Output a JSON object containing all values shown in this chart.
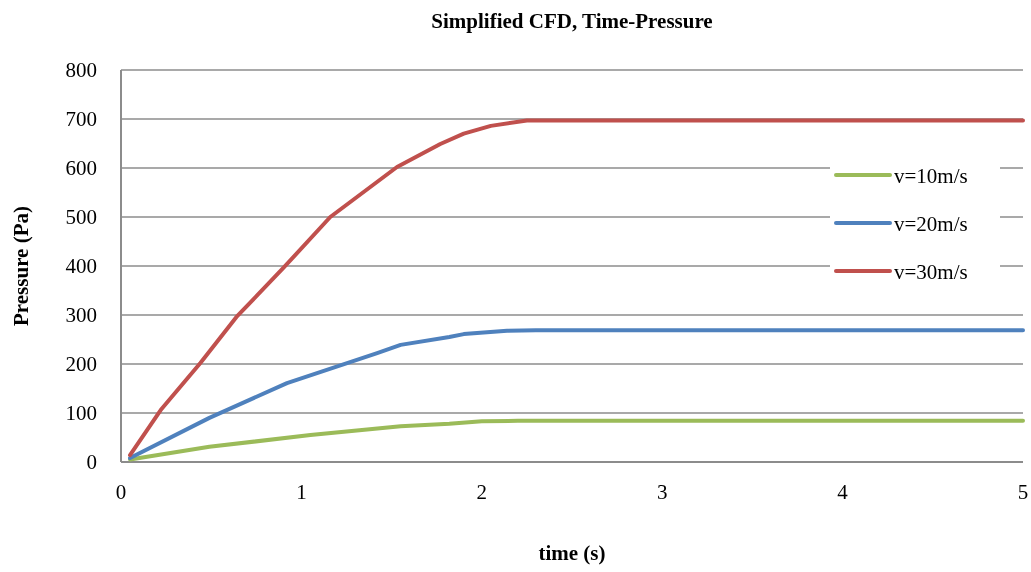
{
  "chart_data": {
    "type": "line",
    "title": "Simplified CFD,  Time-Pressure",
    "xlabel": "time (s)",
    "ylabel": "Pressure (Pa)",
    "xlim": [
      0,
      5
    ],
    "xticks": [
      0,
      1,
      2,
      3,
      4,
      5
    ],
    "ylim": [
      0,
      800
    ],
    "yticks": [
      0,
      100,
      200,
      300,
      400,
      500,
      600,
      700,
      800
    ],
    "grid": "y",
    "legend": "right",
    "marker": "none",
    "line_style": "solid",
    "series": [
      {
        "name": "v=10m/s",
        "color": "#9bbb59",
        "x": [
          0.05,
          0.49,
          1.05,
          1.55,
          1.82,
          2.0,
          2.2,
          3,
          4,
          5
        ],
        "values": [
          5,
          31,
          55,
          73,
          78,
          83,
          84,
          84,
          84,
          84
        ]
      },
      {
        "name": "v=20m/s",
        "color": "#4f81bd",
        "x": [
          0.05,
          0.49,
          0.92,
          1.42,
          1.55,
          1.82,
          1.9,
          2.14,
          2.3,
          3,
          4,
          5
        ],
        "values": [
          8,
          90,
          161,
          222,
          239,
          255,
          261,
          268,
          269,
          269,
          269,
          269
        ]
      },
      {
        "name": "v=30m/s",
        "color": "#c0504d",
        "x": [
          0.05,
          0.22,
          0.44,
          0.64,
          0.9,
          1.16,
          1.53,
          1.77,
          1.9,
          2.05,
          2.25,
          3,
          4,
          5
        ],
        "values": [
          14,
          106,
          202,
          296,
          396,
          500,
          602,
          649,
          670,
          686,
          697,
          697,
          697,
          697
        ]
      }
    ]
  }
}
